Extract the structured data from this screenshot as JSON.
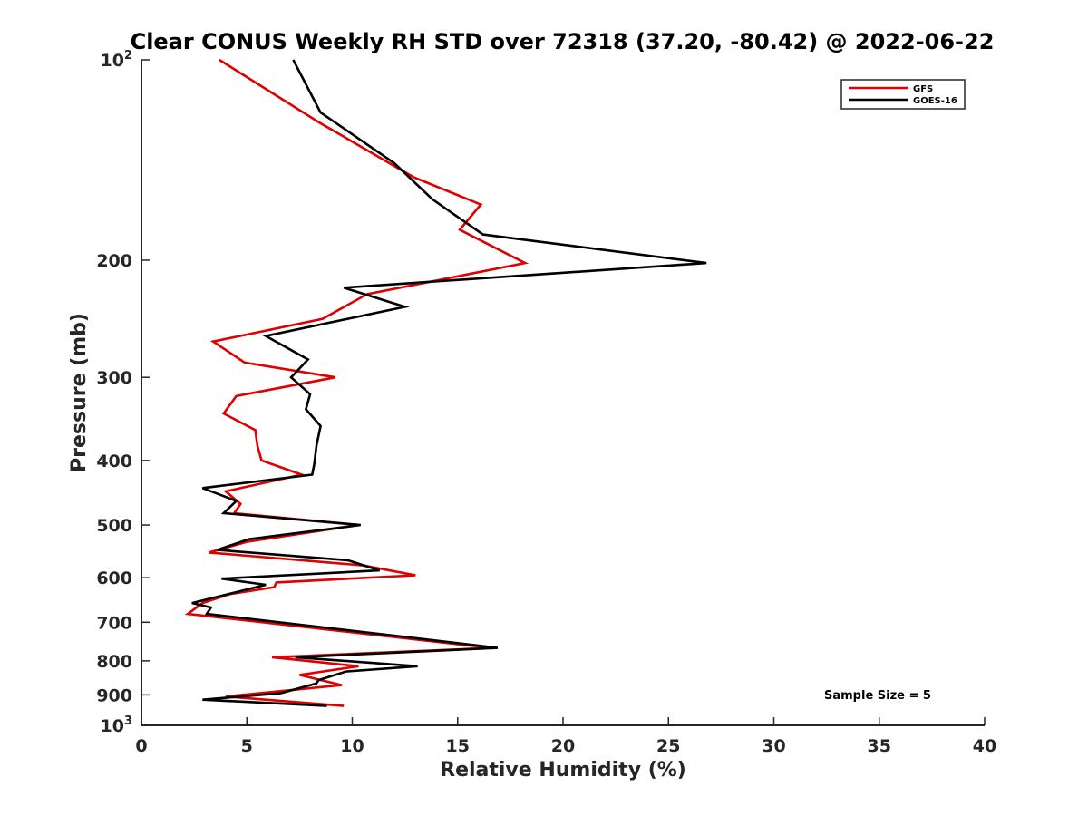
{
  "chart_data": {
    "type": "line",
    "title": "Clear CONUS Weekly RH STD over 72318 (37.20, -80.42) @ 2022-06-22",
    "xlabel": "Relative Humidity (%)",
    "ylabel": "Pressure (mb)",
    "xlim": [
      0,
      40
    ],
    "ylim": [
      100,
      1000
    ],
    "y_scale": "log",
    "y_direction": "reversed",
    "x_ticks": [
      0,
      5,
      10,
      15,
      20,
      25,
      30,
      35,
      40
    ],
    "x_tick_labels": [
      "0",
      "5",
      "10",
      "15",
      "20",
      "25",
      "30",
      "35",
      "40"
    ],
    "y_ticks": [
      {
        "value": 100,
        "base": "10",
        "exp": "2"
      },
      {
        "value": 200,
        "label": "200"
      },
      {
        "value": 300,
        "label": "300"
      },
      {
        "value": 400,
        "label": "400"
      },
      {
        "value": 500,
        "label": "500"
      },
      {
        "value": 600,
        "label": "600"
      },
      {
        "value": 700,
        "label": "700"
      },
      {
        "value": 800,
        "label": "800"
      },
      {
        "value": 900,
        "label": "900"
      },
      {
        "value": 1000,
        "base": "10",
        "exp": "3"
      }
    ],
    "grid": false,
    "legend_position": "top-right",
    "annotation": "Sample Size = 5",
    "series": [
      {
        "name": "GFS",
        "color": "#e00000",
        "points": [
          [
            3.7,
            100
          ],
          [
            8.4,
            124
          ],
          [
            12.9,
            150
          ],
          [
            16.1,
            165
          ],
          [
            15.1,
            180
          ],
          [
            18.2,
            202
          ],
          [
            10.7,
            225
          ],
          [
            8.6,
            245
          ],
          [
            3.4,
            265
          ],
          [
            4.9,
            285
          ],
          [
            9.2,
            300
          ],
          [
            4.5,
            320
          ],
          [
            3.9,
            340
          ],
          [
            5.4,
            360
          ],
          [
            5.5,
            380
          ],
          [
            5.7,
            400
          ],
          [
            7.6,
            420
          ],
          [
            4.0,
            445
          ],
          [
            4.7,
            465
          ],
          [
            4.4,
            480
          ],
          [
            10.3,
            500
          ],
          [
            5.0,
            530
          ],
          [
            3.2,
            550
          ],
          [
            10.5,
            575
          ],
          [
            13.0,
            595
          ],
          [
            6.4,
            610
          ],
          [
            6.3,
            620
          ],
          [
            4.2,
            635
          ],
          [
            2.9,
            655
          ],
          [
            2.2,
            680
          ],
          [
            16.6,
            765
          ],
          [
            6.2,
            790
          ],
          [
            10.3,
            815
          ],
          [
            7.5,
            840
          ],
          [
            9.5,
            870
          ],
          [
            4.0,
            905
          ],
          [
            9.6,
            935
          ]
        ]
      },
      {
        "name": "GOES-16",
        "color": "#000000",
        "points": [
          [
            7.2,
            100
          ],
          [
            8.5,
            120
          ],
          [
            12.0,
            143
          ],
          [
            13.8,
            162
          ],
          [
            16.2,
            183
          ],
          [
            26.8,
            202
          ],
          [
            9.6,
            220
          ],
          [
            12.5,
            235
          ],
          [
            5.9,
            260
          ],
          [
            7.9,
            282
          ],
          [
            7.1,
            300
          ],
          [
            8.0,
            318
          ],
          [
            7.8,
            335
          ],
          [
            8.5,
            355
          ],
          [
            8.3,
            380
          ],
          [
            8.2,
            405
          ],
          [
            8.1,
            420
          ],
          [
            2.9,
            440
          ],
          [
            4.5,
            460
          ],
          [
            3.9,
            480
          ],
          [
            10.4,
            500
          ],
          [
            5.1,
            525
          ],
          [
            3.6,
            545
          ],
          [
            9.8,
            565
          ],
          [
            11.3,
            585
          ],
          [
            3.8,
            602
          ],
          [
            5.9,
            615
          ],
          [
            2.4,
            655
          ],
          [
            3.3,
            665
          ],
          [
            3.1,
            680
          ],
          [
            12.3,
            735
          ],
          [
            16.9,
            765
          ],
          [
            7.3,
            790
          ],
          [
            13.1,
            815
          ],
          [
            9.7,
            830
          ],
          [
            8.4,
            855
          ],
          [
            8.3,
            865
          ],
          [
            6.6,
            895
          ],
          [
            2.9,
            915
          ],
          [
            8.8,
            935
          ]
        ]
      }
    ]
  }
}
